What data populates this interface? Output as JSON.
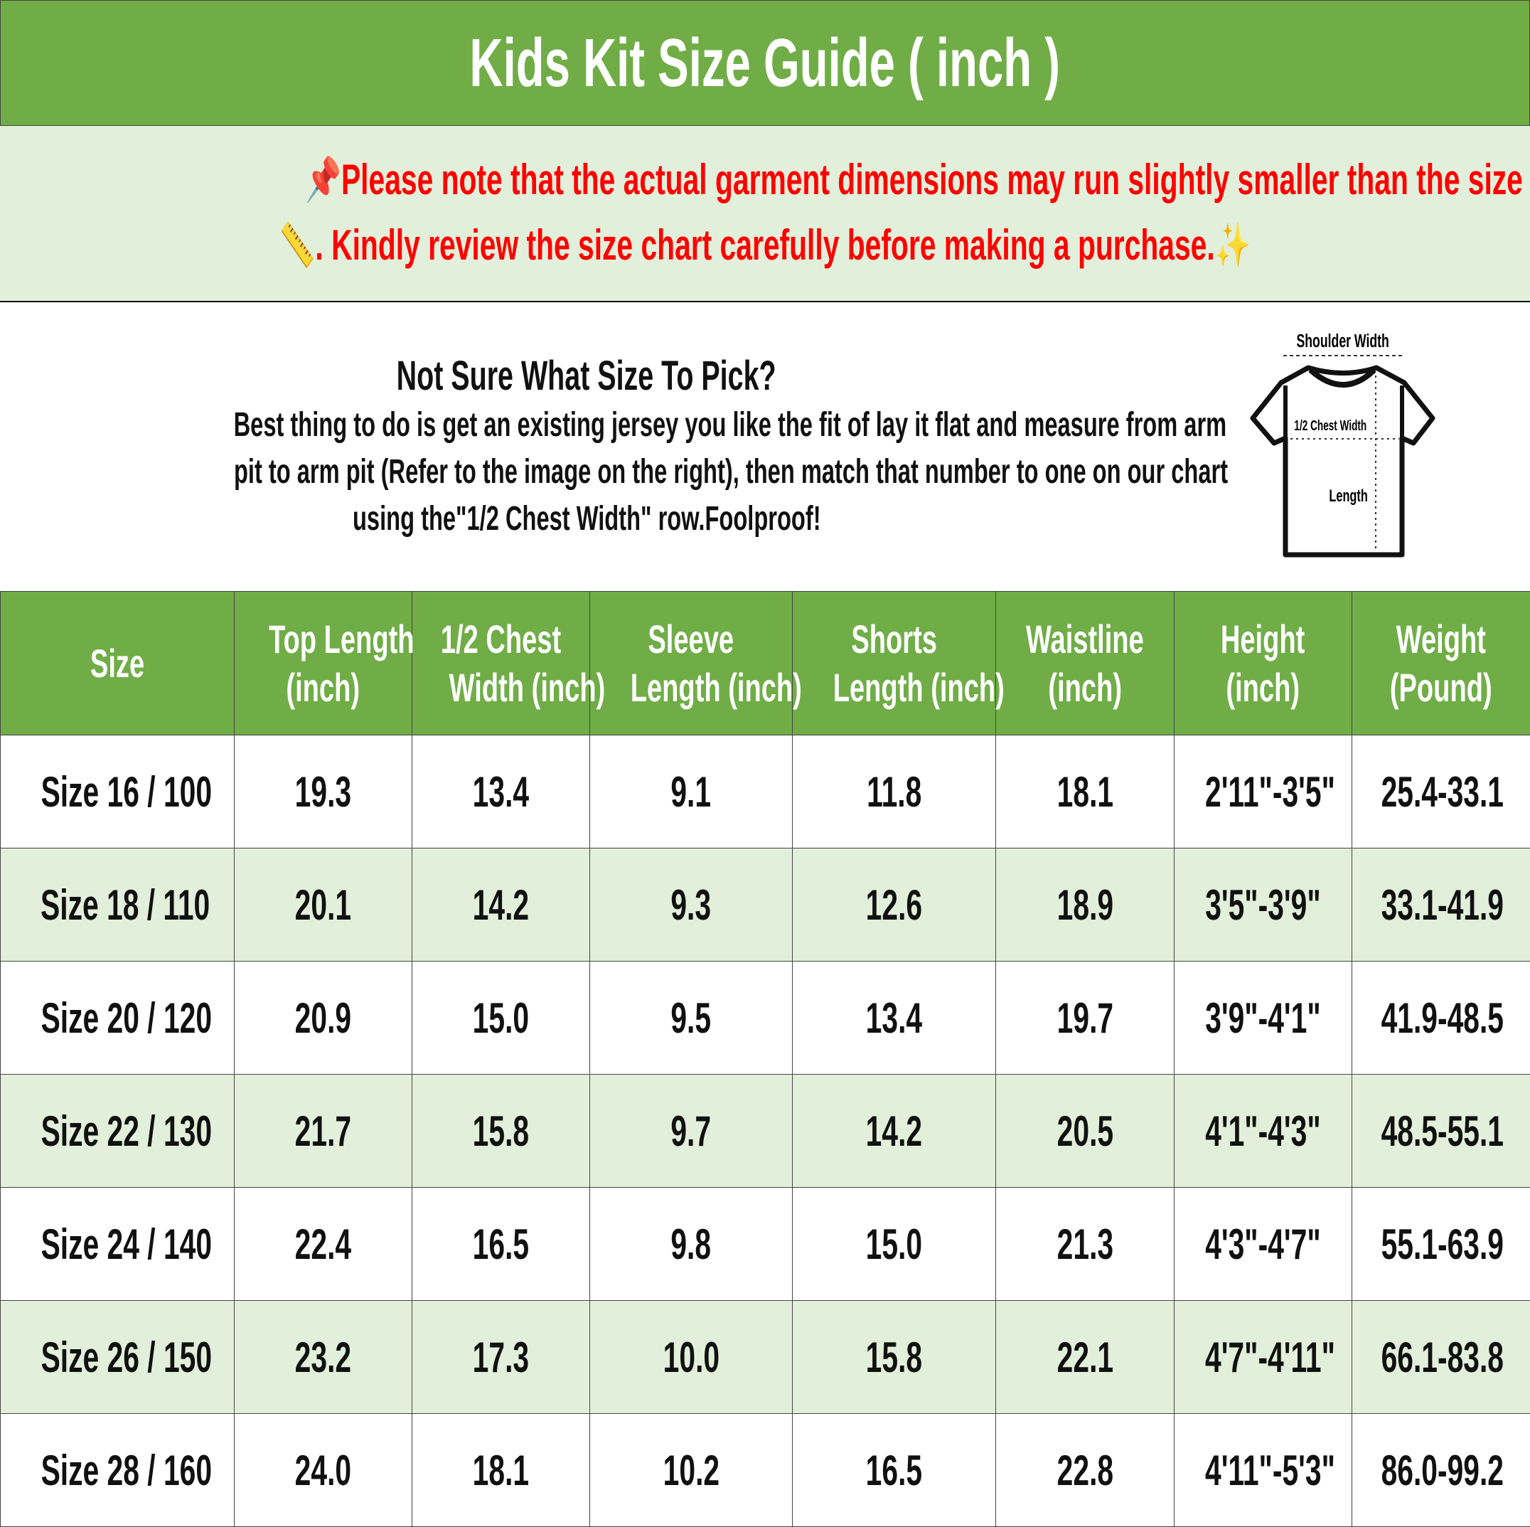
{
  "title": "Kids Kit Size Guide ( inch )",
  "notice": {
    "line1": "Please note that the actual garment dimensions may run slightly smaller than the size chart",
    "line2": ". Kindly review the size chart carefully before making a purchase.",
    "icons": [
      "pushpin-icon",
      "ruler-icon",
      "sparkles-icon"
    ],
    "color": "#FF0000"
  },
  "info": {
    "heading": "Not Sure What Size To Pick?",
    "lines": [
      "Best thing to do is get an existing jersey you like the fit of lay it flat and measure from arm",
      "pit to arm pit (Refer to the image on the right), then match that number to one on our chart",
      "using the\"1/2 Chest Width\" row.Foolproof!"
    ]
  },
  "diagram": {
    "shoulder": "Shoulder Width",
    "chest": "1/2 Chest Width",
    "length": "Length"
  },
  "colors": {
    "header": "#70AD47",
    "alt_row": "#E2EFDA"
  },
  "table": {
    "headers": [
      [
        "Size",
        ""
      ],
      [
        "Top Length",
        "(inch)"
      ],
      [
        "1/2 Chest",
        "Width (inch)"
      ],
      [
        "Sleeve",
        "Length (inch)"
      ],
      [
        "Shorts",
        "Length (inch)"
      ],
      [
        "Waistline",
        "(inch)"
      ],
      [
        "Height",
        "(inch)"
      ],
      [
        "Weight",
        "(Pound)"
      ]
    ],
    "rows": [
      [
        "Size 16 / 100",
        "19.3",
        "13.4",
        "9.1",
        "11.8",
        "18.1",
        "2'11\"-3'5\"",
        "25.4-33.1"
      ],
      [
        "Size 18 / 110",
        "20.1",
        "14.2",
        "9.3",
        "12.6",
        "18.9",
        "3'5\"-3'9\"",
        "33.1-41.9"
      ],
      [
        "Size 20 / 120",
        "20.9",
        "15.0",
        "9.5",
        "13.4",
        "19.7",
        "3'9\"-4'1\"",
        "41.9-48.5"
      ],
      [
        "Size 22 / 130",
        "21.7",
        "15.8",
        "9.7",
        "14.2",
        "20.5",
        "4'1\"-4'3\"",
        "48.5-55.1"
      ],
      [
        "Size 24 / 140",
        "22.4",
        "16.5",
        "9.8",
        "15.0",
        "21.3",
        "4'3\"-4'7\"",
        "55.1-63.9"
      ],
      [
        "Size 26 / 150",
        "23.2",
        "17.3",
        "10.0",
        "15.8",
        "22.1",
        "4'7\"-4'11\"",
        "66.1-83.8"
      ],
      [
        "Size 28 / 160",
        "24.0",
        "18.1",
        "10.2",
        "16.5",
        "22.8",
        "4'11\"-5'3\"",
        "86.0-99.2"
      ]
    ]
  }
}
